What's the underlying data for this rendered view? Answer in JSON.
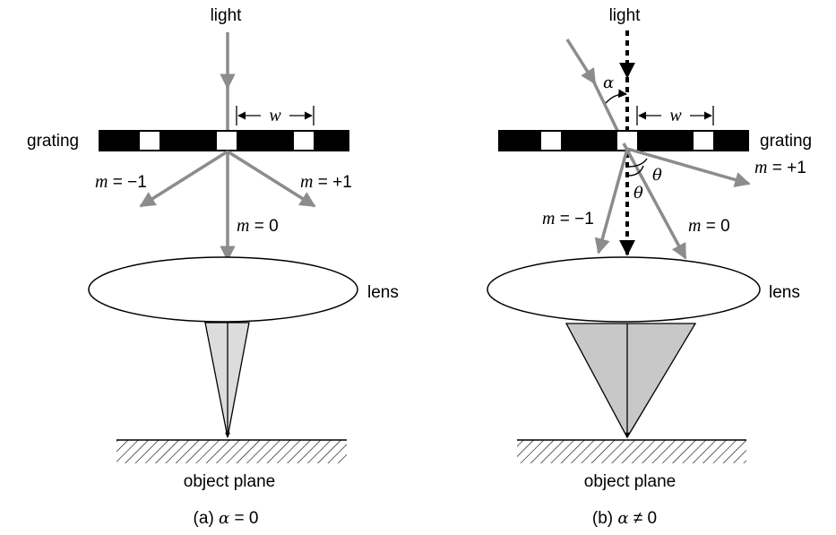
{
  "panel_a": {
    "light_label": "light",
    "grating_label": "grating",
    "width_symbol": "w",
    "orders": {
      "m_minus1": {
        "var": "m",
        "rest": " = −1"
      },
      "m_plus1": {
        "var": "m",
        "rest": " = +1"
      },
      "m_zero": {
        "var": "m",
        "rest": " = 0"
      }
    },
    "lens_label": "lens",
    "object_plane_label": "object plane",
    "caption": {
      "prefix": "(a) ",
      "symbol": "α",
      "rest": " = 0"
    }
  },
  "panel_b": {
    "light_label": "light",
    "grating_label": "grating",
    "width_symbol": "w",
    "alpha_symbol": "α",
    "theta_symbol_1": "θ",
    "theta_symbol_2": "θ",
    "orders": {
      "m_minus1": {
        "var": "m",
        "rest": " = −1"
      },
      "m_plus1": {
        "var": "m",
        "rest": " = +1"
      },
      "m_zero": {
        "var": "m",
        "rest": " = 0"
      }
    },
    "lens_label": "lens",
    "object_plane_label": "object plane",
    "caption": {
      "prefix": "(b) ",
      "symbol": "α",
      "rest": " ≠ 0"
    }
  },
  "colors": {
    "ray_gray": "#8c8c8c",
    "cone_fill_a": "#dcdcdc",
    "cone_fill_b": "#c8c8c8",
    "ink": "#000000"
  }
}
